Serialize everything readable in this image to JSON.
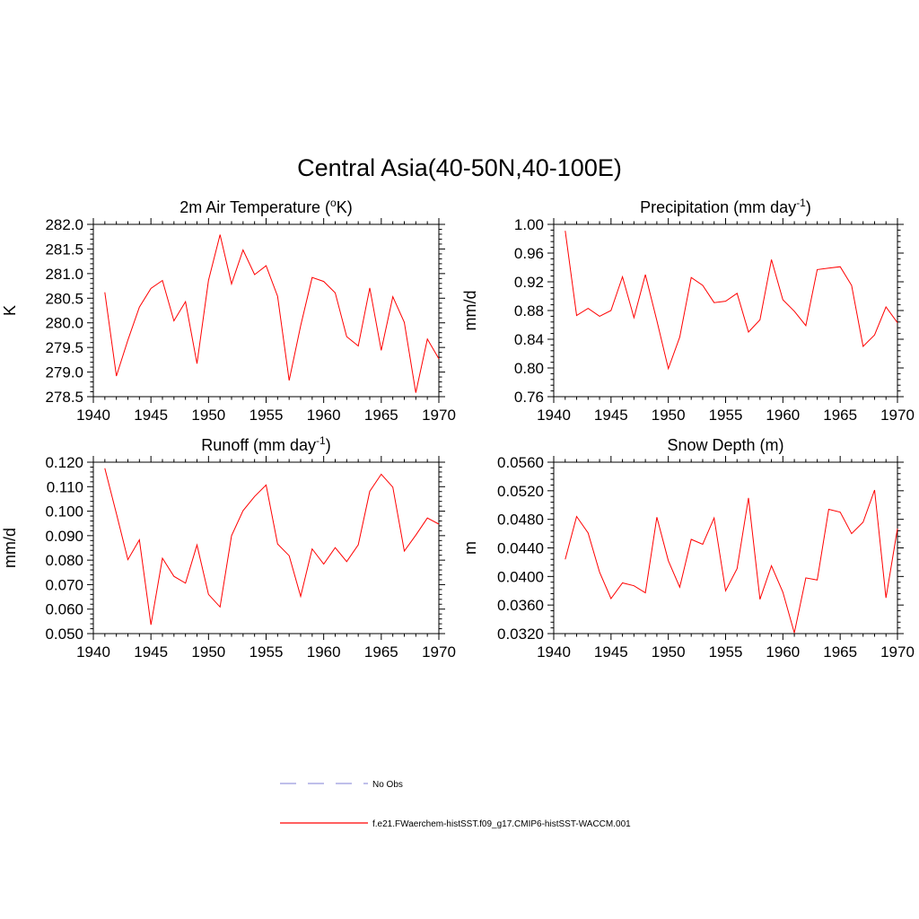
{
  "title": "Central Asia(40-50N,40-100E)",
  "legend": {
    "items": [
      {
        "label": "No Obs",
        "color": "#9999dd",
        "dash": true
      },
      {
        "label": "f.e21.FWaerchem-histSST.f09_g17.CMIP6-histSST-WACCM.001",
        "color": "#ff0000",
        "dash": false
      }
    ]
  },
  "chart_data": [
    {
      "type": "line",
      "title": {
        "pre": "2m Air Temperature (",
        "sup": "o",
        "post": "K)"
      },
      "ylabel": "K",
      "xlim": [
        1940,
        1970
      ],
      "ylim": [
        278.5,
        282.0
      ],
      "xticks": [
        1940,
        1945,
        1950,
        1955,
        1960,
        1965,
        1970
      ],
      "yticks": [
        "278.5",
        "279.0",
        "279.5",
        "280.0",
        "280.5",
        "281.0",
        "281.5",
        "282.0"
      ],
      "color": "#ff0000",
      "x": [
        1941,
        1942,
        1943,
        1944,
        1945,
        1946,
        1947,
        1948,
        1949,
        1950,
        1951,
        1952,
        1953,
        1954,
        1955,
        1956,
        1957,
        1958,
        1959,
        1960,
        1961,
        1962,
        1963,
        1964,
        1965,
        1966,
        1967,
        1968,
        1969,
        1970
      ],
      "y": [
        280.62,
        278.92,
        279.65,
        280.32,
        280.7,
        280.86,
        280.04,
        280.43,
        279.17,
        280.86,
        281.79,
        280.79,
        281.48,
        280.98,
        281.16,
        280.54,
        278.83,
        279.94,
        280.92,
        280.84,
        280.61,
        279.72,
        279.53,
        280.71,
        279.44,
        280.53,
        280.01,
        278.58,
        279.67,
        279.27
      ]
    },
    {
      "type": "line",
      "title": {
        "pre": "Precipitation (mm day",
        "sup": "-1",
        "post": ")"
      },
      "ylabel": "mm/d",
      "xlim": [
        1940,
        1970
      ],
      "ylim": [
        0.76,
        1.0
      ],
      "xticks": [
        1940,
        1945,
        1950,
        1955,
        1960,
        1965,
        1970
      ],
      "yticks": [
        "0.76",
        "0.80",
        "0.84",
        "0.88",
        "0.92",
        "0.96",
        "1.00"
      ],
      "color": "#ff0000",
      "x": [
        1941,
        1942,
        1943,
        1944,
        1945,
        1946,
        1947,
        1948,
        1949,
        1950,
        1951,
        1952,
        1953,
        1954,
        1955,
        1956,
        1957,
        1958,
        1959,
        1960,
        1961,
        1962,
        1963,
        1964,
        1965,
        1966,
        1967,
        1968,
        1969,
        1970
      ],
      "y": [
        0.991,
        0.873,
        0.883,
        0.872,
        0.88,
        0.927,
        0.87,
        0.93,
        0.866,
        0.799,
        0.843,
        0.926,
        0.915,
        0.891,
        0.893,
        0.904,
        0.85,
        0.867,
        0.951,
        0.895,
        0.879,
        0.859,
        0.937,
        0.939,
        0.941,
        0.915,
        0.83,
        0.846,
        0.885,
        0.863
      ]
    },
    {
      "type": "line",
      "title": {
        "pre": "Runoff (mm day",
        "sup": "-1",
        "post": ")"
      },
      "ylabel": "mm/d",
      "xlim": [
        1940,
        1970
      ],
      "ylim": [
        0.05,
        0.12
      ],
      "xticks": [
        1940,
        1945,
        1950,
        1955,
        1960,
        1965,
        1970
      ],
      "yticks": [
        "0.050",
        "0.060",
        "0.070",
        "0.080",
        "0.090",
        "0.100",
        "0.110",
        "0.120"
      ],
      "color": "#ff0000",
      "x": [
        1941,
        1942,
        1943,
        1944,
        1945,
        1946,
        1947,
        1948,
        1949,
        1950,
        1951,
        1952,
        1953,
        1954,
        1955,
        1956,
        1957,
        1958,
        1959,
        1960,
        1961,
        1962,
        1963,
        1964,
        1965,
        1966,
        1967,
        1968,
        1969,
        1970
      ],
      "y": [
        0.1175,
        0.099,
        0.0802,
        0.0883,
        0.0536,
        0.0808,
        0.0734,
        0.0706,
        0.0862,
        0.066,
        0.0609,
        0.09,
        0.1002,
        0.106,
        0.1107,
        0.0866,
        0.0818,
        0.0652,
        0.0846,
        0.0784,
        0.0851,
        0.0794,
        0.0863,
        0.1081,
        0.1151,
        0.1098,
        0.0837,
        0.0902,
        0.0972,
        0.0947
      ]
    },
    {
      "type": "line",
      "title": {
        "pre": "Snow Depth (m)",
        "sup": "",
        "post": ""
      },
      "ylabel": "m",
      "xlim": [
        1940,
        1970
      ],
      "ylim": [
        0.032,
        0.056
      ],
      "xticks": [
        1940,
        1945,
        1950,
        1955,
        1960,
        1965,
        1970
      ],
      "yticks": [
        "0.0320",
        "0.0360",
        "0.0400",
        "0.0440",
        "0.0480",
        "0.0520",
        "0.0560"
      ],
      "color": "#ff0000",
      "x": [
        1941,
        1942,
        1943,
        1944,
        1945,
        1946,
        1947,
        1948,
        1949,
        1950,
        1951,
        1952,
        1953,
        1954,
        1955,
        1956,
        1957,
        1958,
        1959,
        1960,
        1961,
        1962,
        1963,
        1964,
        1965,
        1966,
        1967,
        1968,
        1969,
        1970
      ],
      "y": [
        0.0424,
        0.0484,
        0.0461,
        0.0406,
        0.0369,
        0.0391,
        0.0387,
        0.0377,
        0.0483,
        0.0422,
        0.0385,
        0.0452,
        0.0445,
        0.0482,
        0.038,
        0.0411,
        0.051,
        0.0368,
        0.0415,
        0.0378,
        0.0321,
        0.0398,
        0.0395,
        0.0494,
        0.049,
        0.046,
        0.0476,
        0.0521,
        0.037,
        0.0467
      ]
    }
  ]
}
